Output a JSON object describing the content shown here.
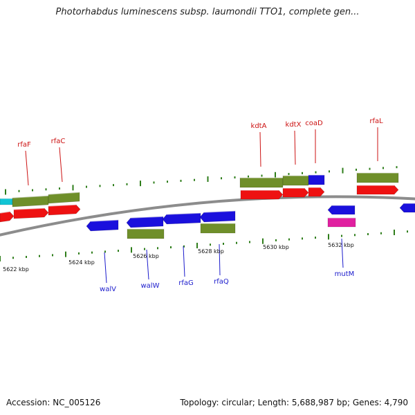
{
  "title": "Photorhabdus luminescens subsp. laumondii TTO1, complete gen...",
  "footer": {
    "accession": "Accession: NC_005126",
    "summary": "Topology: circular; Length: 5,688,987 bp; Genes: 4,790"
  },
  "colors": {
    "backbone": "#8c8c8c",
    "tick": "#2e7d1a",
    "cds": "#6f8f2a",
    "gene_red": "#ee1111",
    "gene_blue": "#1a10dd",
    "gene_cyan": "#11c4d4",
    "gene_magenta": "#e020a0",
    "label_top": "#cc1111",
    "label_bottom": "#1a1acc"
  },
  "scale_labels": [
    "5622 kbp",
    "5624 kbp",
    "5626 kbp",
    "5628 kbp",
    "5630 kbp",
    "5632 kbp"
  ],
  "genes_top": [
    {
      "name": "rfaF"
    },
    {
      "name": "rfaC"
    },
    {
      "name": "kdtA"
    },
    {
      "name": "kdtX"
    },
    {
      "name": "coaD"
    },
    {
      "name": "rfaL"
    }
  ],
  "genes_bottom": [
    {
      "name": "walV"
    },
    {
      "name": "walW"
    },
    {
      "name": "rfaG"
    },
    {
      "name": "rfaQ"
    },
    {
      "name": "mutM"
    }
  ]
}
